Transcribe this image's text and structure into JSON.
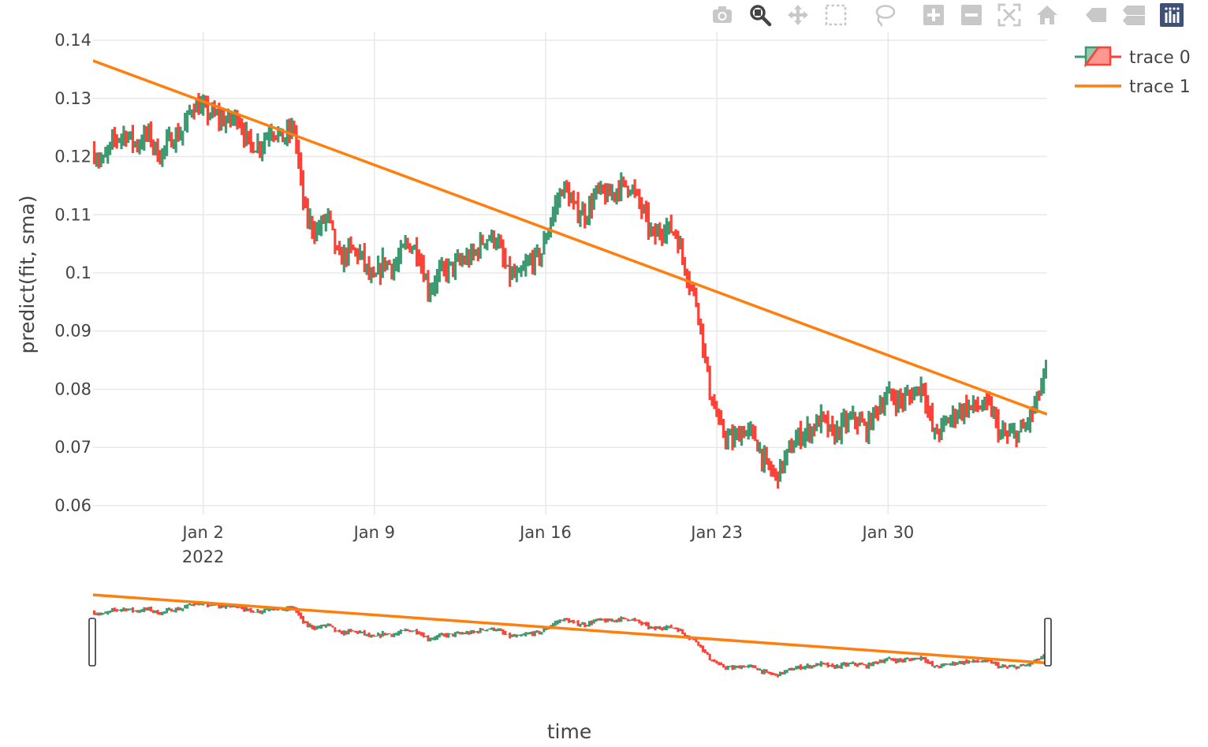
{
  "modebar": {
    "buttons": [
      {
        "icon": "camera-icon",
        "title": "Download plot as a png"
      },
      {
        "icon": "zoom-icon",
        "title": "Zoom"
      },
      {
        "icon": "pan-icon",
        "title": "Pan"
      },
      {
        "icon": "box-select-icon",
        "title": "Box Select"
      },
      {
        "icon": "lasso-select-icon",
        "title": "Lasso Select"
      },
      {
        "icon": "zoom-in-icon",
        "title": "Zoom in"
      },
      {
        "icon": "zoom-out-icon",
        "title": "Zoom out"
      },
      {
        "icon": "autoscale-icon",
        "title": "Autoscale"
      },
      {
        "icon": "reset-axes-icon",
        "title": "Reset axes"
      },
      {
        "icon": "hover-closest-icon",
        "title": "Show closest data on hover"
      },
      {
        "icon": "hover-compare-icon",
        "title": "Compare data on hover"
      },
      {
        "icon": "plotly-logo-icon",
        "title": "Produced with Plotly"
      }
    ],
    "colors": {
      "inactive": "#c8c8c8",
      "active": "#444444",
      "logo_bg": "#3f4f75"
    }
  },
  "chart_data": {
    "type": "candlestick",
    "title": "",
    "xlabel": "time",
    "ylabel": "predict(fit, sma)",
    "x_range": [
      "2021-12-28T12:00",
      "2022-02-05T12:00"
    ],
    "ylim": [
      0.0585,
      0.1415
    ],
    "yticks": [
      0.06,
      0.07,
      0.08,
      0.09,
      0.1,
      0.11,
      0.12,
      0.13,
      0.14
    ],
    "ytick_labels": [
      "0.06",
      "0.07",
      "0.08",
      "0.09",
      "0.1",
      "0.11",
      "0.12",
      "0.13",
      "0.14"
    ],
    "xticks": [
      "2022-01-02",
      "2022-01-09",
      "2022-01-16",
      "2022-01-23",
      "2022-01-30"
    ],
    "xtick_labels": [
      "Jan 2",
      "Jan 9",
      "Jan 16",
      "Jan 23",
      "Jan 30"
    ],
    "xtick_sublabel": "2022",
    "grid": true,
    "legend_position": "top-right",
    "rangeslider": true,
    "colors": {
      "increasing": "#3d9970",
      "decreasing": "#ff4136",
      "trace1": "#ff7f0e"
    },
    "series": [
      {
        "name": "trace 0",
        "type": "candlestick",
        "close_path": [
          [
            "2021-12-28T12:00",
            0.121
          ],
          [
            "2021-12-29T00:00",
            0.119
          ],
          [
            "2021-12-29T12:00",
            0.123
          ],
          [
            "2021-12-30T00:00",
            0.124
          ],
          [
            "2021-12-30T12:00",
            0.122
          ],
          [
            "2021-12-31T00:00",
            0.124
          ],
          [
            "2021-12-31T12:00",
            0.12
          ],
          [
            "2022-01-01T00:00",
            0.123
          ],
          [
            "2022-01-01T12:00",
            0.124
          ],
          [
            "2022-01-02T00:00",
            0.129
          ],
          [
            "2022-01-02T12:00",
            0.128
          ],
          [
            "2022-01-03T00:00",
            0.127
          ],
          [
            "2022-01-03T12:00",
            0.126
          ],
          [
            "2022-01-04T00:00",
            0.127
          ],
          [
            "2022-01-04T12:00",
            0.122
          ],
          [
            "2022-01-05T00:00",
            0.122
          ],
          [
            "2022-01-05T12:00",
            0.125
          ],
          [
            "2022-01-06T00:00",
            0.123
          ],
          [
            "2022-01-06T12:00",
            0.125
          ],
          [
            "2022-01-07T00:00",
            0.11
          ],
          [
            "2022-01-07T12:00",
            0.107
          ],
          [
            "2022-01-08T00:00",
            0.11
          ],
          [
            "2022-01-08T12:00",
            0.102
          ],
          [
            "2022-01-09T00:00",
            0.104
          ],
          [
            "2022-01-09T12:00",
            0.103
          ],
          [
            "2022-01-10T00:00",
            0.098
          ],
          [
            "2022-01-10T12:00",
            0.102
          ],
          [
            "2022-01-11T00:00",
            0.101
          ],
          [
            "2022-01-11T12:00",
            0.105
          ],
          [
            "2022-01-12T00:00",
            0.104
          ],
          [
            "2022-01-12T12:00",
            0.097
          ],
          [
            "2022-01-13T00:00",
            0.1
          ],
          [
            "2022-01-13T12:00",
            0.101
          ],
          [
            "2022-01-14T00:00",
            0.102
          ],
          [
            "2022-01-14T12:00",
            0.103
          ],
          [
            "2022-01-15T00:00",
            0.106
          ],
          [
            "2022-01-15T12:00",
            0.106
          ],
          [
            "2022-01-16T00:00",
            0.1
          ],
          [
            "2022-01-16T12:00",
            0.099
          ],
          [
            "2022-01-17T00:00",
            0.102
          ],
          [
            "2022-01-17T12:00",
            0.103
          ],
          [
            "2022-01-18T00:00",
            0.11
          ],
          [
            "2022-01-18T12:00",
            0.115
          ],
          [
            "2022-01-19T00:00",
            0.111
          ],
          [
            "2022-01-19T12:00",
            0.11
          ],
          [
            "2022-01-20T00:00",
            0.114
          ],
          [
            "2022-01-20T12:00",
            0.113
          ],
          [
            "2022-01-21T00:00",
            0.115
          ],
          [
            "2022-01-21T12:00",
            0.115
          ],
          [
            "2022-01-22T00:00",
            0.111
          ],
          [
            "2022-01-22T12:00",
            0.106
          ],
          [
            "2022-01-23T00:00",
            0.108
          ],
          [
            "2022-01-23T12:00",
            0.107
          ],
          [
            "2022-01-24T00:00",
            0.1
          ],
          [
            "2022-01-24T12:00",
            0.094
          ],
          [
            "2022-01-25T00:00",
            0.08
          ],
          [
            "2022-01-25T12:00",
            0.073
          ],
          [
            "2022-01-26T00:00",
            0.071
          ],
          [
            "2022-01-26T12:00",
            0.073
          ],
          [
            "2022-01-27T00:00",
            0.072
          ],
          [
            "2022-01-27T12:00",
            0.067
          ],
          [
            "2022-01-28T00:00",
            0.065
          ],
          [
            "2022-01-28T12:00",
            0.069
          ],
          [
            "2022-01-29T00:00",
            0.072
          ],
          [
            "2022-01-29T12:00",
            0.073
          ],
          [
            "2022-01-30T00:00",
            0.075
          ],
          [
            "2022-01-30T12:00",
            0.072
          ],
          [
            "2022-01-31T00:00",
            0.074
          ],
          [
            "2022-01-31T12:00",
            0.075
          ],
          [
            "2022-02-01T00:00",
            0.073
          ],
          [
            "2022-02-01T12:00",
            0.077
          ],
          [
            "2022-02-02T00:00",
            0.079
          ],
          [
            "2022-02-02T12:00",
            0.078
          ],
          [
            "2022-02-03T00:00",
            0.079
          ],
          [
            "2022-02-03T12:00",
            0.081
          ],
          [
            "2022-02-04T00:00",
            0.072
          ],
          [
            "2022-02-04T12:00",
            0.074
          ],
          [
            "2022-02-05T00:00",
            0.076
          ],
          [
            "2022-02-05T12:00",
            0.077
          ],
          [
            "2022-02-06T00:00",
            0.077
          ],
          [
            "2022-02-06T12:00",
            0.077
          ],
          [
            "2022-02-07T00:00",
            0.072
          ],
          [
            "2022-02-07T12:00",
            0.072
          ],
          [
            "2022-02-08T00:00",
            0.073
          ],
          [
            "2022-02-08T12:00",
            0.077
          ],
          [
            "2022-02-09T00:00",
            0.083
          ]
        ],
        "close_path_time_scale": {
          "from": [
            "2021-12-28T12:00",
            "2022-02-09T00:00"
          ],
          "to": [
            "2021-12-28T12:00",
            "2022-02-05T12:00"
          ]
        }
      },
      {
        "name": "trace 1",
        "type": "line",
        "x": [
          "2021-12-28T12:00",
          "2022-02-05T12:00"
        ],
        "y": [
          0.1365,
          0.0757
        ]
      }
    ]
  }
}
